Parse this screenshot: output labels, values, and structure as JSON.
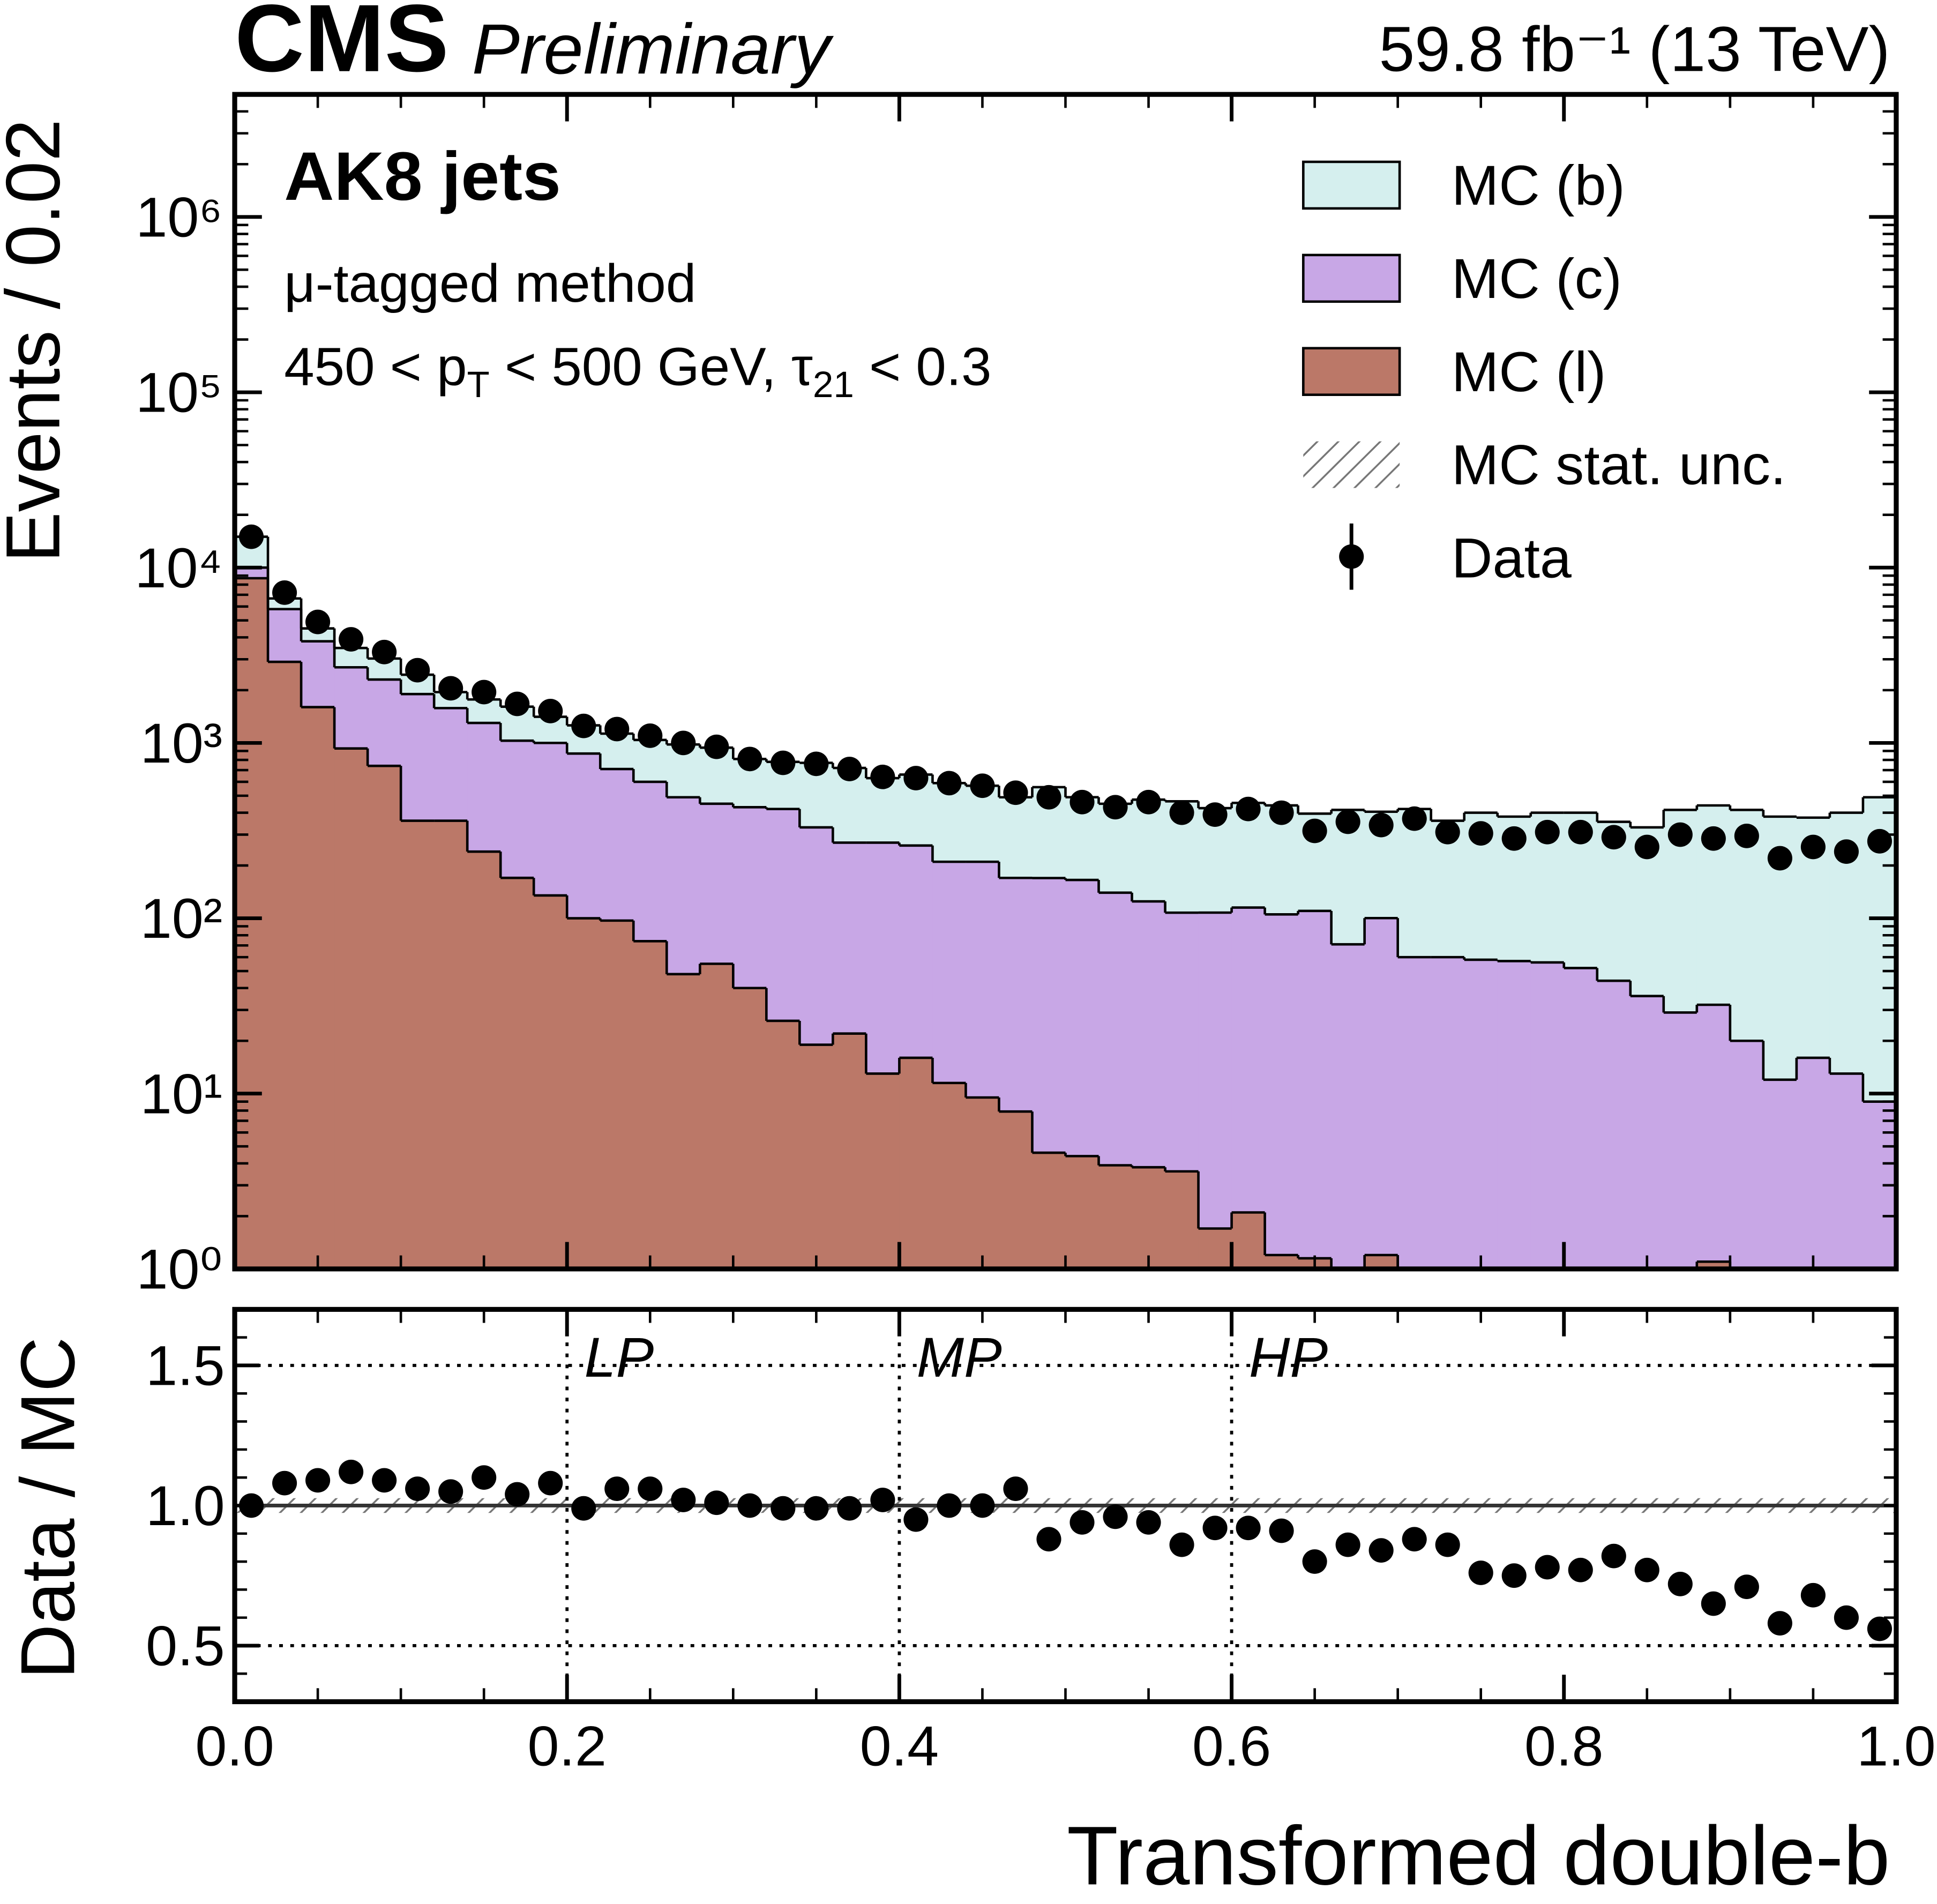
{
  "chart_data": [
    {
      "type": "histogram",
      "stacked": true,
      "title": "CMS",
      "subtitle": "Preliminary",
      "lumi": "59.8 fb⁻¹ (13 TeV)",
      "annotations": [
        "AK8 jets",
        "μ-tagged method"
      ],
      "selection": [
        "450 < p",
        "T",
        " < 500 GeV, τ",
        "21",
        " < 0.3"
      ],
      "ylabel": "Events / 0.02",
      "bins": [
        0,
        0.02,
        0.04,
        0.06,
        0.08,
        0.1,
        0.12,
        0.14,
        0.16,
        0.18,
        0.2,
        0.22,
        0.24,
        0.26,
        0.28,
        0.3,
        0.32,
        0.34,
        0.36,
        0.38,
        0.4,
        0.42,
        0.44,
        0.46,
        0.48,
        0.5,
        0.52,
        0.54,
        0.56,
        0.58,
        0.6,
        0.62,
        0.64,
        0.66,
        0.68,
        0.7,
        0.72,
        0.74,
        0.76,
        0.78,
        0.8,
        0.82,
        0.84,
        0.86,
        0.88,
        0.9,
        0.92,
        0.94,
        0.96,
        0.98,
        1
      ],
      "series": [
        {
          "name": "MC (l)",
          "color": "#bb7868",
          "values": [
            8700,
            2900,
            1600,
            930,
            740,
            360,
            360,
            240,
            170,
            135,
            100,
            97,
            74,
            48,
            55,
            40,
            26,
            19,
            22,
            13,
            16,
            11.5,
            9.5,
            7.9,
            4.6,
            4.4,
            3.9,
            3.8,
            3.6,
            1.7,
            2.1,
            1.2,
            1.15,
            0.5,
            1.2,
            0.5,
            0.5,
            0.5,
            0.5,
            0.5,
            0.5,
            0.5,
            0.5,
            0.5,
            1.1,
            0.5,
            0.5,
            0.5,
            0.5,
            0.5
          ]
        },
        {
          "name": "MC (c)",
          "color": "#c8a7e6",
          "values": [
            1300,
            2900,
            2200,
            1770,
            1560,
            1540,
            1220,
            1060,
            860,
            865,
            770,
            613,
            526,
            442,
            395,
            390,
            394,
            311,
            248,
            257,
            244,
            198.5,
            200.5,
            162,
            165,
            161,
            136,
            121,
            104,
            106,
            113,
            104,
            109,
            70.5,
            99,
            59.5,
            59.5,
            57.5,
            56.5,
            55.5,
            51.5,
            43.5,
            35.5,
            28.5,
            31,
            19.5,
            11.5,
            15.5,
            12.5,
            8.5
          ]
        },
        {
          "name": "MC (b)",
          "color": "#d5efee",
          "values": [
            5000,
            870,
            700,
            780,
            730,
            550,
            370,
            470,
            580,
            410,
            390,
            420,
            440,
            490,
            490,
            380,
            360,
            440,
            450,
            360,
            400,
            380,
            360,
            320,
            390,
            325,
            310,
            350,
            357,
            317,
            340,
            335,
            285,
            344,
            305,
            360,
            300,
            342,
            323,
            344,
            348,
            311,
            294,
            386,
            408,
            395,
            368,
            359,
            387,
            481
          ]
        }
      ],
      "data": {
        "name": "Data",
        "color": "#000000",
        "values": [
          15000,
          7200,
          4900,
          3900,
          3300,
          2600,
          2050,
          1950,
          1670,
          1520,
          1250,
          1200,
          1100,
          1000,
          950,
          810,
          770,
          760,
          710,
          640,
          630,
          590,
          570,
          520,
          490,
          460,
          430,
          460,
          400,
          390,
          420,
          400,
          315,
          355,
          340,
          370,
          310,
          305,
          285,
          310,
          310,
          290,
          255,
          300,
          285,
          295,
          220,
          255,
          240,
          275
        ]
      },
      "uncertainty_label": "MC stat. unc.",
      "log_y": true,
      "legend": "upper right",
      "xlim": [
        0,
        1
      ],
      "ylim": [
        1,
        5000000
      ],
      "yticks": [
        {
          "value": 1,
          "label": "10⁰"
        },
        {
          "value": 10,
          "label": "10¹"
        },
        {
          "value": 100,
          "label": "10²"
        },
        {
          "value": 1000,
          "label": "10³"
        },
        {
          "value": 10000,
          "label": "10⁴"
        },
        {
          "value": 100000,
          "label": "10⁵"
        },
        {
          "value": 1000000,
          "label": "10⁶"
        }
      ]
    },
    {
      "type": "scatter",
      "ylabel": "Data / MC",
      "xlabel": "Transformed double-b",
      "color": "#000000",
      "x": [
        0.01,
        0.03,
        0.05,
        0.07,
        0.09,
        0.11,
        0.13,
        0.15,
        0.17,
        0.19,
        0.21,
        0.23,
        0.25,
        0.27,
        0.29,
        0.31,
        0.33,
        0.35,
        0.37,
        0.39,
        0.41,
        0.43,
        0.45,
        0.47,
        0.49,
        0.51,
        0.53,
        0.55,
        0.57,
        0.59,
        0.61,
        0.63,
        0.65,
        0.67,
        0.69,
        0.71,
        0.73,
        0.75,
        0.77,
        0.79,
        0.81,
        0.83,
        0.85,
        0.87,
        0.89,
        0.91,
        0.93,
        0.95,
        0.97,
        0.99
      ],
      "values": [
        1.0,
        1.08,
        1.09,
        1.12,
        1.09,
        1.06,
        1.05,
        1.1,
        1.04,
        1.08,
        0.99,
        1.06,
        1.06,
        1.02,
        1.01,
        1.0,
        0.99,
        0.99,
        0.99,
        1.02,
        0.95,
        1.0,
        1.0,
        1.06,
        0.88,
        0.94,
        0.96,
        0.94,
        0.86,
        0.92,
        0.92,
        0.91,
        0.8,
        0.86,
        0.84,
        0.88,
        0.86,
        0.76,
        0.75,
        0.78,
        0.77,
        0.82,
        0.77,
        0.72,
        0.65,
        0.71,
        0.58,
        0.68,
        0.6,
        0.56
      ],
      "xlim": [
        0,
        1
      ],
      "xticks": [
        {
          "value": 0,
          "label": "0.0"
        },
        0.2,
        0.4,
        0.6,
        0.8,
        {
          "value": 1,
          "label": "1.0"
        }
      ],
      "ylim": [
        0.3,
        1.7
      ],
      "yticks": [
        0.5,
        {
          "value": 1,
          "label": "1.0"
        },
        1.5
      ],
      "grid": "dotted",
      "reference_line": 1,
      "working_points": [
        {
          "value": 0.2,
          "label": "LP"
        },
        {
          "value": 0.4,
          "label": "MP"
        },
        {
          "value": 0.6,
          "label": "HP"
        }
      ]
    }
  ]
}
